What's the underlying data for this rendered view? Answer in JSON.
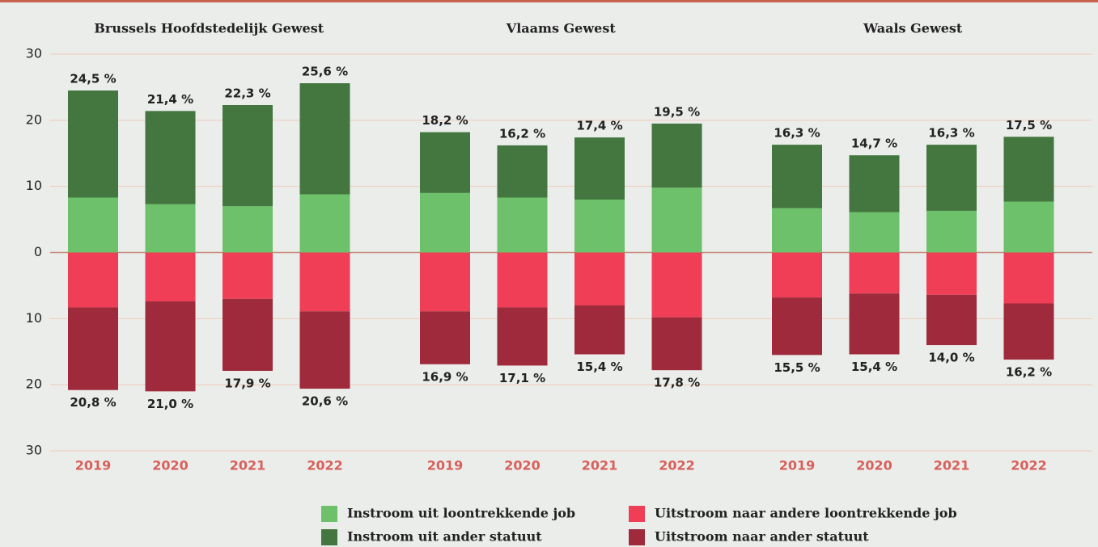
{
  "chart_data": {
    "type": "bar",
    "stacked": true,
    "ylim": [
      -30,
      30
    ],
    "yticks": [
      {
        "value": -30,
        "label": "30"
      },
      {
        "value": -20,
        "label": "20"
      },
      {
        "value": -10,
        "label": "10"
      },
      0,
      10,
      20,
      30
    ],
    "grid": true,
    "groups": [
      {
        "title": "Brussels Hoofdstedelijk Gewest",
        "categories": [
          "2019",
          "2020",
          "2021",
          "2022"
        ]
      },
      {
        "title": "Vlaams Gewest",
        "categories": [
          "2019",
          "2020",
          "2021",
          "2022"
        ]
      },
      {
        "title": "Waals Gewest",
        "categories": [
          "2019",
          "2020",
          "2021",
          "2022"
        ]
      }
    ],
    "series": [
      {
        "name": "Instroom uit loontrekkende job",
        "color": "#6cc16a",
        "values": [
          8.3,
          7.3,
          7.0,
          8.8,
          9.0,
          8.3,
          8.0,
          9.8,
          6.7,
          6.1,
          6.3,
          7.7
        ]
      },
      {
        "name": "Instroom uit ander statuut",
        "color": "#43773f",
        "values": [
          16.2,
          14.1,
          15.3,
          16.8,
          9.2,
          7.9,
          9.4,
          9.7,
          9.6,
          8.6,
          10.0,
          9.8
        ]
      },
      {
        "name": "Uitstroom naar andere loontrekkende job",
        "color": "#ef3e55",
        "values": [
          -8.3,
          -7.4,
          -7.0,
          -8.9,
          -8.9,
          -8.3,
          -8.0,
          -9.8,
          -6.8,
          -6.2,
          -6.4,
          -7.7
        ]
      },
      {
        "name": "Uitstroom naar ander statuut",
        "color": "#9e2a3b",
        "values": [
          -12.5,
          -13.6,
          -10.9,
          -11.7,
          -8.0,
          -8.8,
          -7.4,
          -8.0,
          -8.7,
          -9.2,
          -7.6,
          -8.5
        ]
      }
    ],
    "positive_totals": {
      "values": [
        24.5,
        21.4,
        22.3,
        25.6,
        18.2,
        16.2,
        17.4,
        19.5,
        16.3,
        14.7,
        16.3,
        17.5
      ],
      "value_labels": [
        "24,5 %",
        "21,4 %",
        "22,3 %",
        "25,6 %",
        "18,2 %",
        "16,2 %",
        "17,4 %",
        "19,5 %",
        "16,3 %",
        "14,7 %",
        "16,3 %",
        "17,5 %"
      ]
    },
    "negative_totals": {
      "values": [
        -20.8,
        -21.0,
        -17.9,
        -20.6,
        -16.9,
        -17.1,
        -15.4,
        -17.8,
        -15.5,
        -15.4,
        -14.0,
        -16.2
      ],
      "value_labels": [
        "20,8 %",
        "21,0 %",
        "17,9 %",
        "20,6 %",
        "16,9 %",
        "17,1 %",
        "15,4 %",
        "17,8 %",
        "15,5 %",
        "15,4 %",
        "14,0 %",
        "16,2 %"
      ]
    }
  }
}
